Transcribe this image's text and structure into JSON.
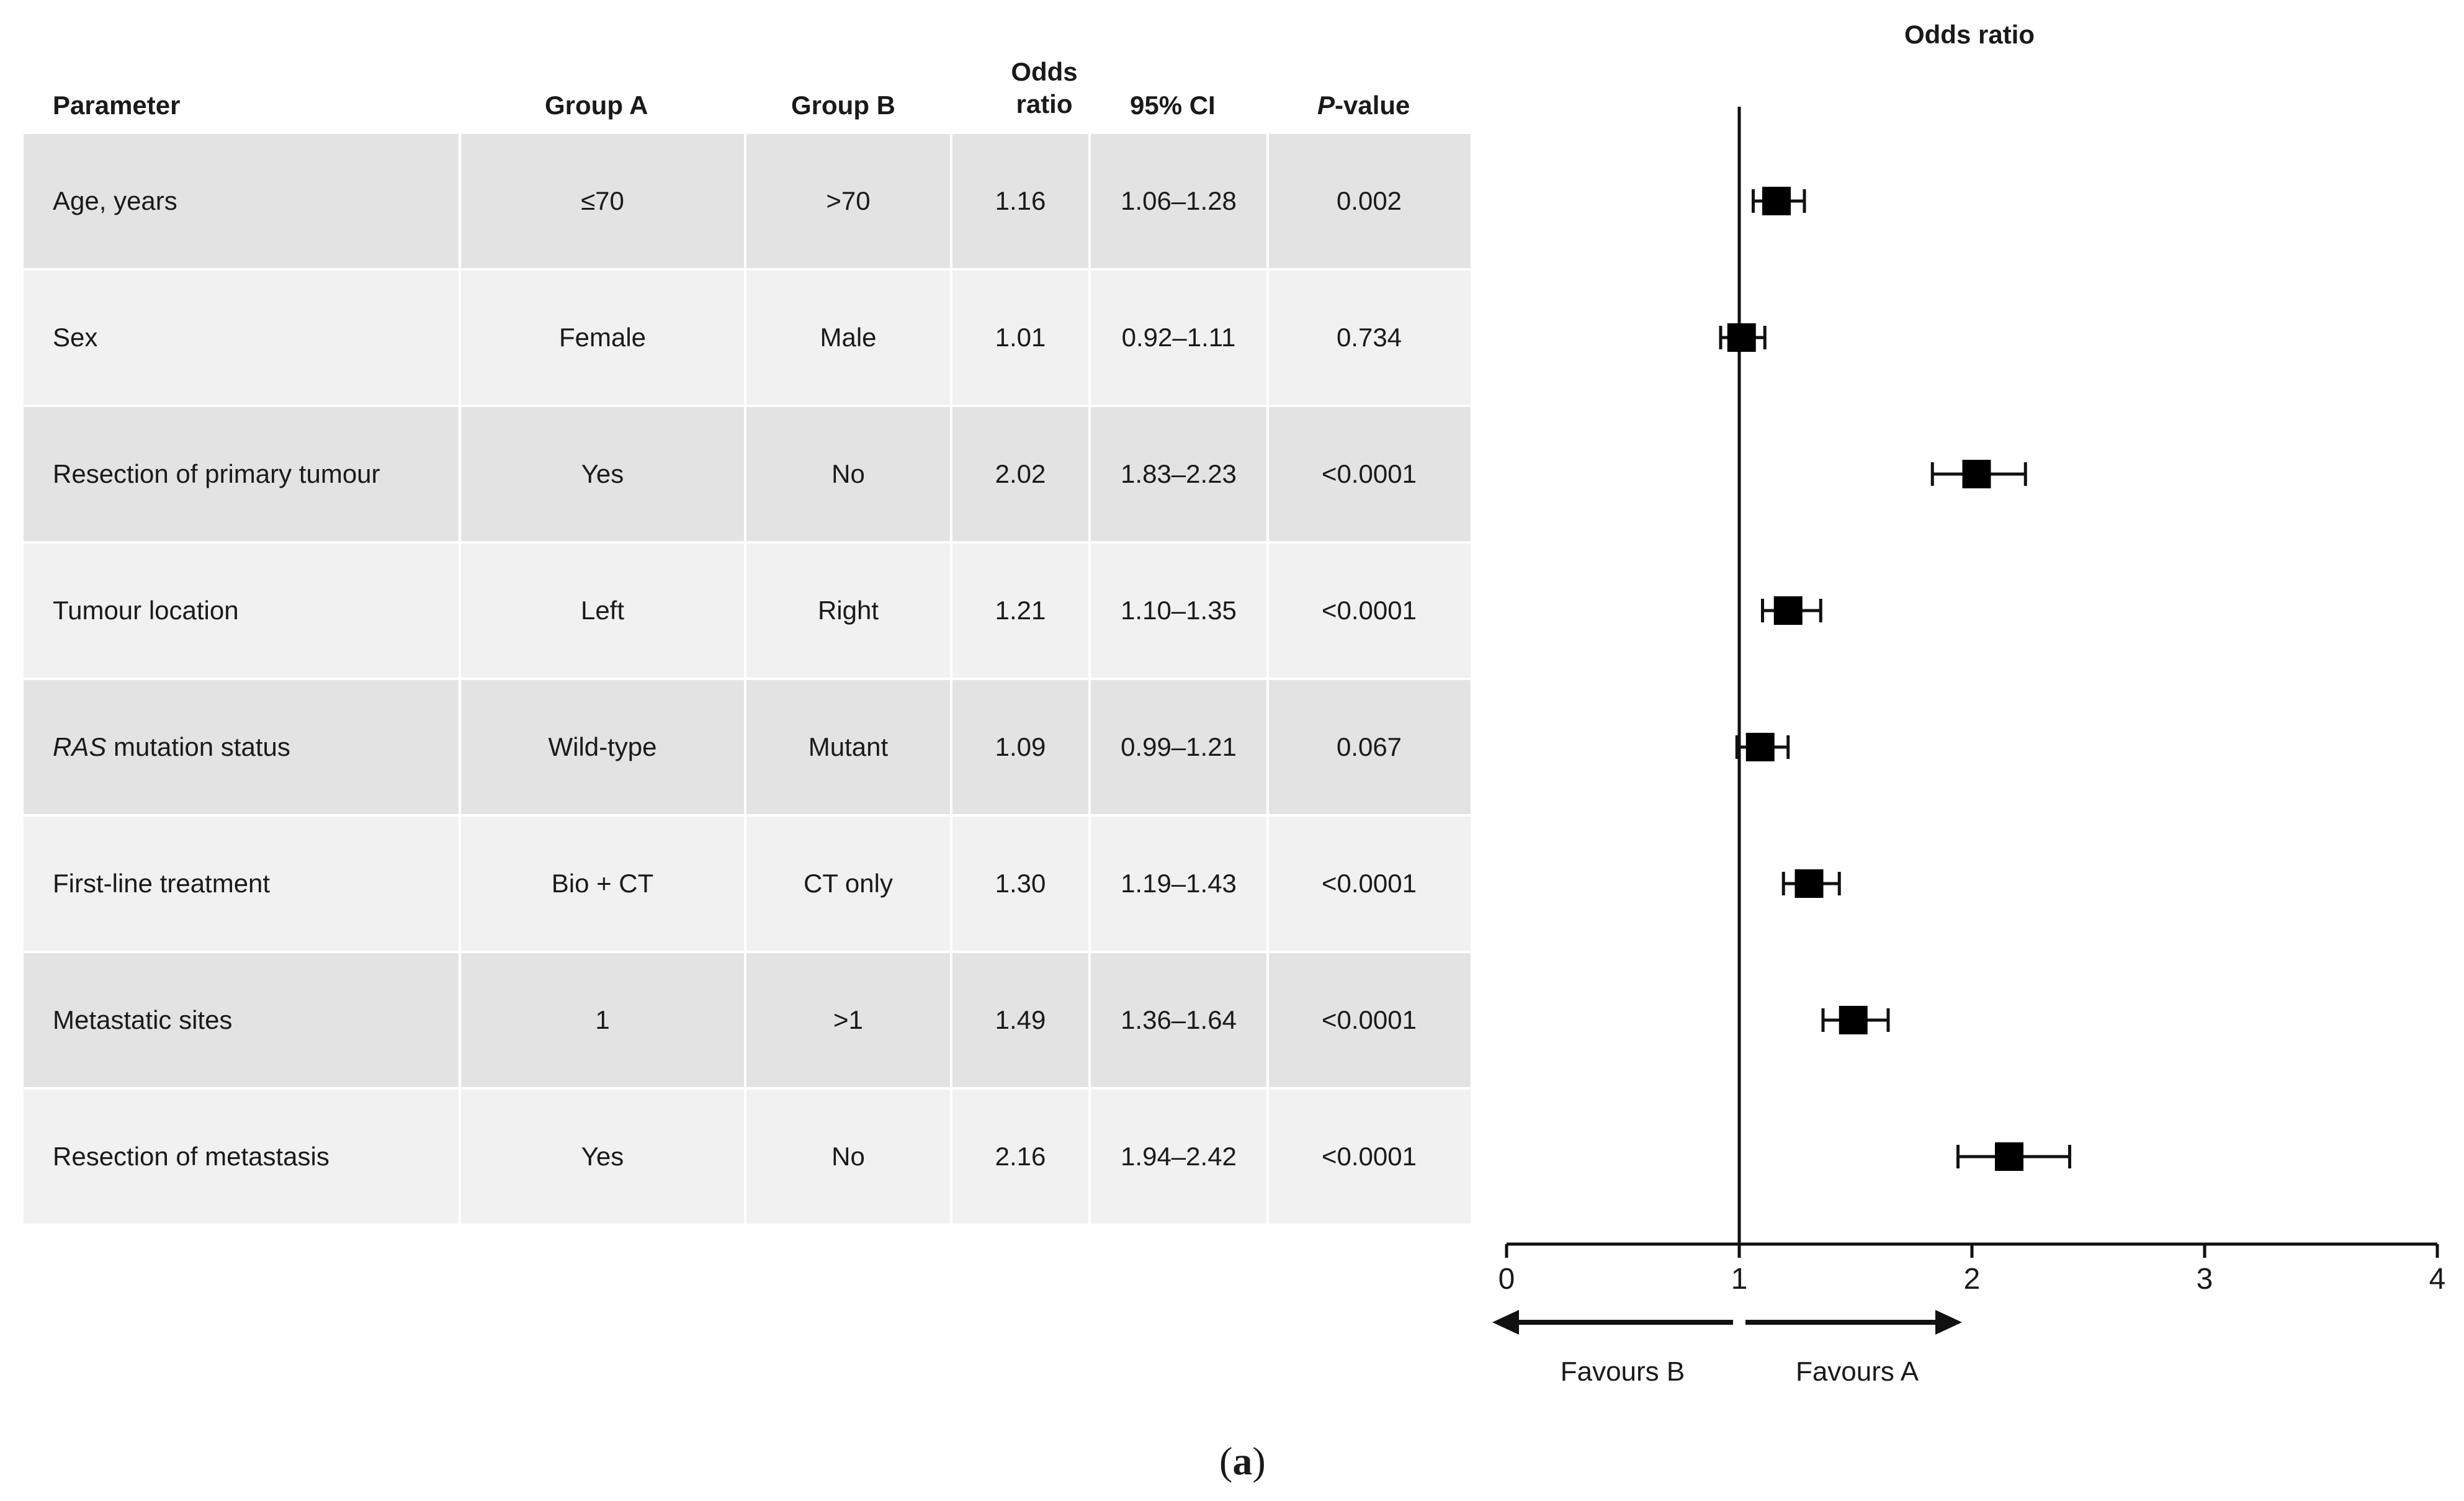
{
  "table": {
    "headers": {
      "parameter": "Parameter",
      "group_a": "Group A",
      "group_b": "Group B",
      "or_line1": "Odds",
      "or_line2": "ratio",
      "ci": "95% CI",
      "pv_italic": "P",
      "pv_rest": "-value"
    },
    "rows": [
      {
        "parameter": "Age, years",
        "italic_prefix": "",
        "group_a": "≤70",
        "group_b": ">70",
        "or": "1.16",
        "ci": "1.06–1.28",
        "p": "0.002"
      },
      {
        "parameter": "Sex",
        "italic_prefix": "",
        "group_a": "Female",
        "group_b": "Male",
        "or": "1.01",
        "ci": "0.92–1.11",
        "p": "0.734"
      },
      {
        "parameter": "Resection of primary tumour",
        "italic_prefix": "",
        "group_a": "Yes",
        "group_b": "No",
        "or": "2.02",
        "ci": "1.83–2.23",
        "p": "<0.0001"
      },
      {
        "parameter": "Tumour location",
        "italic_prefix": "",
        "group_a": "Left",
        "group_b": "Right",
        "or": "1.21",
        "ci": "1.10–1.35",
        "p": "<0.0001"
      },
      {
        "parameter": " mutation status",
        "italic_prefix": "RAS",
        "group_a": "Wild-type",
        "group_b": "Mutant",
        "or": "1.09",
        "ci": "0.99–1.21",
        "p": "0.067"
      },
      {
        "parameter": "First-line treatment",
        "italic_prefix": "",
        "group_a": "Bio + CT",
        "group_b": "CT only",
        "or": "1.30",
        "ci": "1.19–1.43",
        "p": "<0.0001"
      },
      {
        "parameter": "Metastatic sites",
        "italic_prefix": "",
        "group_a": "1",
        "group_b": ">1",
        "or": "1.49",
        "ci": "1.36–1.64",
        "p": "<0.0001"
      },
      {
        "parameter": "Resection of metastasis",
        "italic_prefix": "",
        "group_a": "Yes",
        "group_b": "No",
        "or": "2.16",
        "ci": "1.94–2.42",
        "p": "<0.0001"
      }
    ]
  },
  "chart_data": {
    "type": "scatter",
    "subtype": "forest-plot",
    "title": "Odds ratio",
    "xlim": [
      0,
      4
    ],
    "xticks": [
      "0",
      "1",
      "2",
      "3",
      "4"
    ],
    "reference_line": 1,
    "points": [
      {
        "label": "Age, years",
        "or": 1.16,
        "lo": 1.06,
        "hi": 1.28
      },
      {
        "label": "Sex",
        "or": 1.01,
        "lo": 0.92,
        "hi": 1.11
      },
      {
        "label": "Resection of primary tumour",
        "or": 2.02,
        "lo": 1.83,
        "hi": 2.23
      },
      {
        "label": "Tumour location",
        "or": 1.21,
        "lo": 1.1,
        "hi": 1.35
      },
      {
        "label": "RAS mutation status",
        "or": 1.09,
        "lo": 0.99,
        "hi": 1.21
      },
      {
        "label": "First-line treatment",
        "or": 1.3,
        "lo": 1.19,
        "hi": 1.43
      },
      {
        "label": "Metastatic sites",
        "or": 1.49,
        "lo": 1.36,
        "hi": 1.64
      },
      {
        "label": "Resection of metastasis",
        "or": 2.16,
        "lo": 1.94,
        "hi": 2.42
      }
    ],
    "arrow_left_label": "Favours B",
    "arrow_right_label": "Favours A"
  },
  "caption": {
    "open": "(",
    "letter": "a",
    "close": ")"
  }
}
